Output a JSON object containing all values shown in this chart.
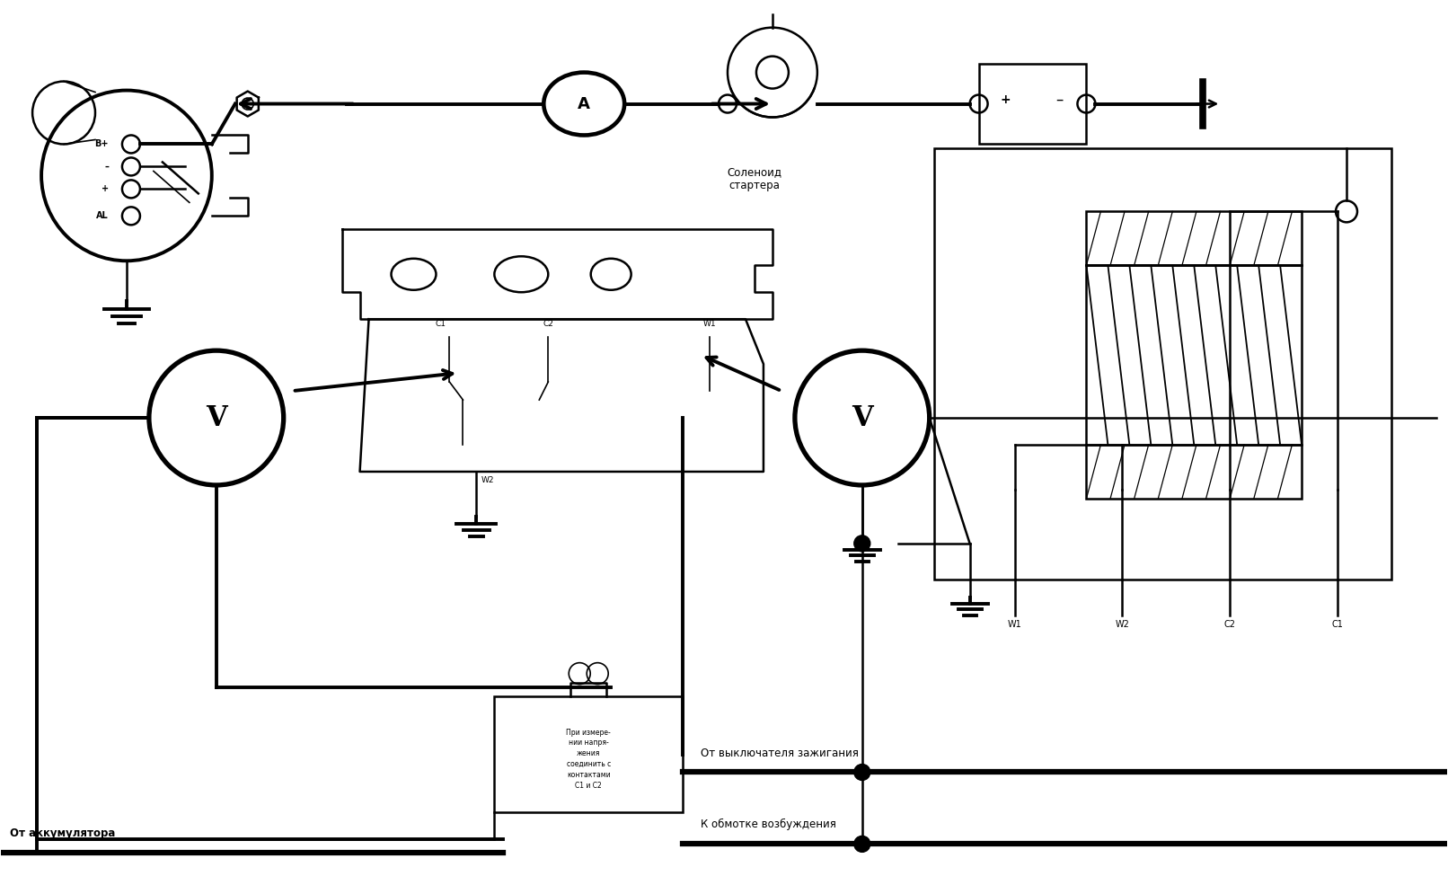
{
  "bg_color": "#ffffff",
  "lc": "#000000",
  "fig_w": 16.12,
  "fig_h": 9.85,
  "text_solenoid": "Соленоид\nстартера",
  "text_battery_from": "От аккумулятора",
  "text_ignition": "От выключателя зажигания",
  "text_excitation": "К обмотке возбуждения",
  "text_note": "При измере-\nнии напря-\nжения\nсоединить с\nконтактами\nС1 и С2"
}
